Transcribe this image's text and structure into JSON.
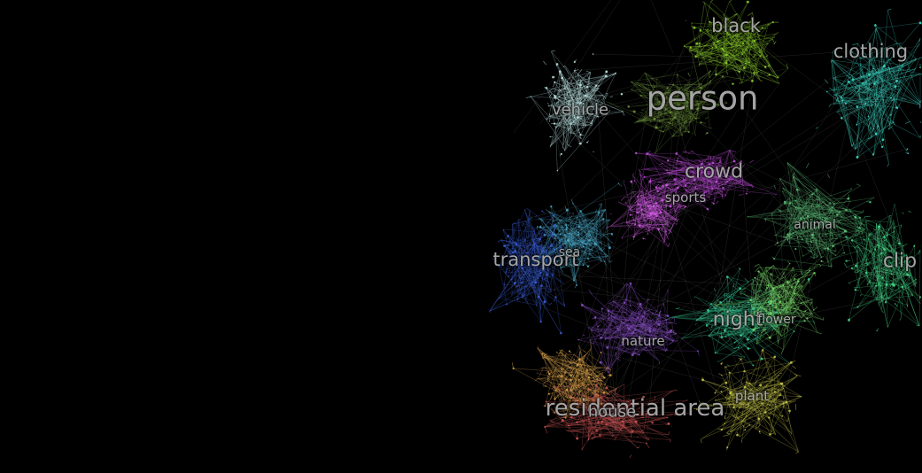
{
  "background_color": "#000000",
  "label_color": "#c8c8c8",
  "clusters": [
    {
      "label": "black",
      "color": "#8fd12e"
    },
    {
      "label": "clothing",
      "color": "#3fd9c9"
    },
    {
      "label": "person",
      "color": "#6a8f3a"
    },
    {
      "label": "vehicle",
      "color": "#bfe8e8"
    },
    {
      "label": "crowd",
      "color": "#c24fe0"
    },
    {
      "label": "sports",
      "color": "#d35be8"
    },
    {
      "label": "animal",
      "color": "#5ec07a"
    },
    {
      "label": "transport",
      "color": "#3a5fd8"
    },
    {
      "label": "sea",
      "color": "#4aa8c8"
    },
    {
      "label": "clip",
      "color": "#46d88a"
    },
    {
      "label": "night",
      "color": "#38d29a"
    },
    {
      "label": "flower",
      "color": "#7ad86a"
    },
    {
      "label": "nature",
      "color": "#8a4fc8"
    },
    {
      "label": "plant",
      "color": "#c8c84a"
    },
    {
      "label": "residential area",
      "color": "#d85a5a"
    },
    {
      "label": "house",
      "color": "#d8a04a"
    }
  ]
}
